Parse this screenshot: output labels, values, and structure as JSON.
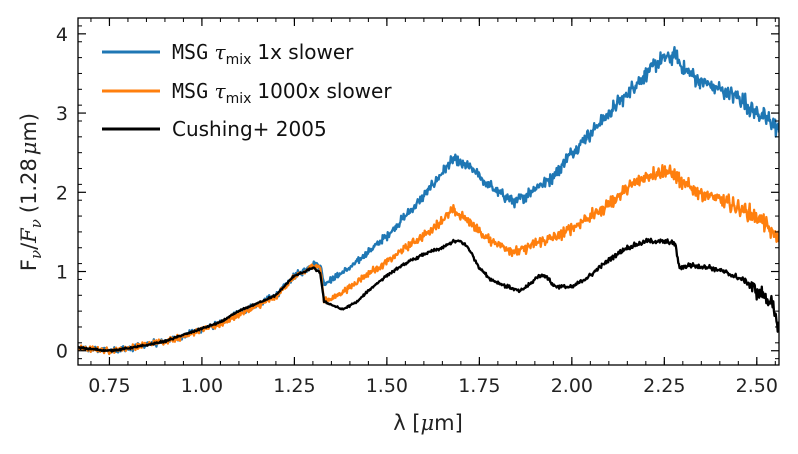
{
  "chart_data": {
    "type": "line",
    "title": "",
    "xlabel": {
      "prefix": "λ [",
      "mu": "μ",
      "suffix": "m]"
    },
    "ylabel": {
      "F": "F",
      "nu": "ν",
      "slash": "/",
      "F2": "F",
      "nu2": "ν",
      "paren": "(1.28",
      "mu": "μ",
      "m": "m)"
    },
    "xlim": [
      0.665,
      2.56
    ],
    "ylim": [
      -0.18,
      4.2
    ],
    "xticks": [
      0.75,
      1.0,
      1.25,
      1.5,
      1.75,
      2.0,
      2.25,
      2.5
    ],
    "xtick_labels": [
      "0.75",
      "1.00",
      "1.25",
      "1.50",
      "1.75",
      "2.00",
      "2.25",
      "2.50"
    ],
    "yticks": [
      0,
      1,
      2,
      3,
      4
    ],
    "ytick_labels": [
      "0",
      "1",
      "2",
      "3",
      "4"
    ],
    "legend_position": "top-left",
    "series": [
      {
        "name": "MSG τmix 1x slower",
        "legend": {
          "mono": "MSG",
          "tau": "τ",
          "sub": "mix",
          "rest": "1x slower"
        },
        "color": "#1f77b4",
        "noise": 0.05,
        "points": [
          [
            0.665,
            0.03
          ],
          [
            0.75,
            0.0
          ],
          [
            0.8,
            0.03
          ],
          [
            0.85,
            0.08
          ],
          [
            0.9,
            0.12
          ],
          [
            0.95,
            0.18
          ],
          [
            1.0,
            0.28
          ],
          [
            1.05,
            0.34
          ],
          [
            1.1,
            0.48
          ],
          [
            1.15,
            0.58
          ],
          [
            1.2,
            0.7
          ],
          [
            1.25,
            0.95
          ],
          [
            1.28,
            1.02
          ],
          [
            1.3,
            1.1
          ],
          [
            1.32,
            1.08
          ],
          [
            1.33,
            0.85
          ],
          [
            1.36,
            0.92
          ],
          [
            1.4,
            1.05
          ],
          [
            1.45,
            1.25
          ],
          [
            1.5,
            1.45
          ],
          [
            1.55,
            1.7
          ],
          [
            1.6,
            1.95
          ],
          [
            1.65,
            2.25
          ],
          [
            1.68,
            2.42
          ],
          [
            1.7,
            2.35
          ],
          [
            1.73,
            2.3
          ],
          [
            1.76,
            2.15
          ],
          [
            1.8,
            2.0
          ],
          [
            1.85,
            1.88
          ],
          [
            1.9,
            2.05
          ],
          [
            1.95,
            2.2
          ],
          [
            2.0,
            2.5
          ],
          [
            2.05,
            2.75
          ],
          [
            2.1,
            3.0
          ],
          [
            2.15,
            3.25
          ],
          [
            2.2,
            3.5
          ],
          [
            2.25,
            3.7
          ],
          [
            2.28,
            3.72
          ],
          [
            2.3,
            3.55
          ],
          [
            2.35,
            3.4
          ],
          [
            2.4,
            3.3
          ],
          [
            2.45,
            3.2
          ],
          [
            2.5,
            3.0
          ],
          [
            2.55,
            2.85
          ],
          [
            2.56,
            2.75
          ]
        ]
      },
      {
        "name": "MSG τmix 1000x slower",
        "legend": {
          "mono": "MSG",
          "tau": "τ",
          "sub": "mix",
          "rest": "1000x slower"
        },
        "color": "#ff7f0e",
        "noise": 0.045,
        "points": [
          [
            0.665,
            0.03
          ],
          [
            0.75,
            0.0
          ],
          [
            0.8,
            0.03
          ],
          [
            0.85,
            0.08
          ],
          [
            0.9,
            0.12
          ],
          [
            0.95,
            0.18
          ],
          [
            1.0,
            0.27
          ],
          [
            1.05,
            0.33
          ],
          [
            1.1,
            0.46
          ],
          [
            1.15,
            0.56
          ],
          [
            1.2,
            0.68
          ],
          [
            1.25,
            0.93
          ],
          [
            1.28,
            1.0
          ],
          [
            1.3,
            1.08
          ],
          [
            1.32,
            1.05
          ],
          [
            1.33,
            0.62
          ],
          [
            1.36,
            0.68
          ],
          [
            1.4,
            0.8
          ],
          [
            1.45,
            0.98
          ],
          [
            1.5,
            1.12
          ],
          [
            1.55,
            1.3
          ],
          [
            1.6,
            1.45
          ],
          [
            1.65,
            1.65
          ],
          [
            1.68,
            1.78
          ],
          [
            1.7,
            1.7
          ],
          [
            1.73,
            1.62
          ],
          [
            1.76,
            1.45
          ],
          [
            1.8,
            1.35
          ],
          [
            1.85,
            1.25
          ],
          [
            1.9,
            1.35
          ],
          [
            1.95,
            1.42
          ],
          [
            2.0,
            1.55
          ],
          [
            2.05,
            1.7
          ],
          [
            2.1,
            1.85
          ],
          [
            2.15,
            2.05
          ],
          [
            2.2,
            2.2
          ],
          [
            2.25,
            2.28
          ],
          [
            2.28,
            2.2
          ],
          [
            2.3,
            2.1
          ],
          [
            2.35,
            2.0
          ],
          [
            2.4,
            1.9
          ],
          [
            2.45,
            1.8
          ],
          [
            2.5,
            1.7
          ],
          [
            2.55,
            1.45
          ],
          [
            2.56,
            1.4
          ]
        ]
      },
      {
        "name": "Cushing+ 2005",
        "legend": {
          "text": "Cushing+ 2005"
        },
        "color": "#000000",
        "noise": 0.015,
        "points": [
          [
            0.665,
            0.04
          ],
          [
            0.7,
            0.02
          ],
          [
            0.75,
            0.0
          ],
          [
            0.8,
            0.03
          ],
          [
            0.85,
            0.07
          ],
          [
            0.9,
            0.12
          ],
          [
            0.95,
            0.2
          ],
          [
            1.0,
            0.28
          ],
          [
            1.05,
            0.36
          ],
          [
            1.1,
            0.5
          ],
          [
            1.15,
            0.6
          ],
          [
            1.2,
            0.7
          ],
          [
            1.25,
            0.95
          ],
          [
            1.28,
            1.0
          ],
          [
            1.3,
            1.05
          ],
          [
            1.32,
            0.98
          ],
          [
            1.33,
            0.62
          ],
          [
            1.35,
            0.58
          ],
          [
            1.38,
            0.52
          ],
          [
            1.42,
            0.62
          ],
          [
            1.46,
            0.8
          ],
          [
            1.5,
            0.95
          ],
          [
            1.55,
            1.1
          ],
          [
            1.6,
            1.22
          ],
          [
            1.65,
            1.3
          ],
          [
            1.68,
            1.38
          ],
          [
            1.7,
            1.38
          ],
          [
            1.72,
            1.3
          ],
          [
            1.75,
            1.05
          ],
          [
            1.78,
            0.9
          ],
          [
            1.82,
            0.82
          ],
          [
            1.86,
            0.75
          ],
          [
            1.89,
            0.85
          ],
          [
            1.91,
            0.95
          ],
          [
            1.93,
            0.95
          ],
          [
            1.95,
            0.82
          ],
          [
            2.0,
            0.8
          ],
          [
            2.05,
            0.95
          ],
          [
            2.1,
            1.15
          ],
          [
            2.15,
            1.3
          ],
          [
            2.2,
            1.38
          ],
          [
            2.25,
            1.38
          ],
          [
            2.28,
            1.35
          ],
          [
            2.29,
            1.05
          ],
          [
            2.32,
            1.08
          ],
          [
            2.38,
            1.05
          ],
          [
            2.42,
            0.98
          ],
          [
            2.45,
            0.92
          ],
          [
            2.48,
            0.85
          ],
          [
            2.5,
            0.75
          ],
          [
            2.52,
            0.7
          ],
          [
            2.54,
            0.6
          ],
          [
            2.55,
            0.4
          ],
          [
            2.56,
            0.3
          ]
        ]
      }
    ]
  }
}
